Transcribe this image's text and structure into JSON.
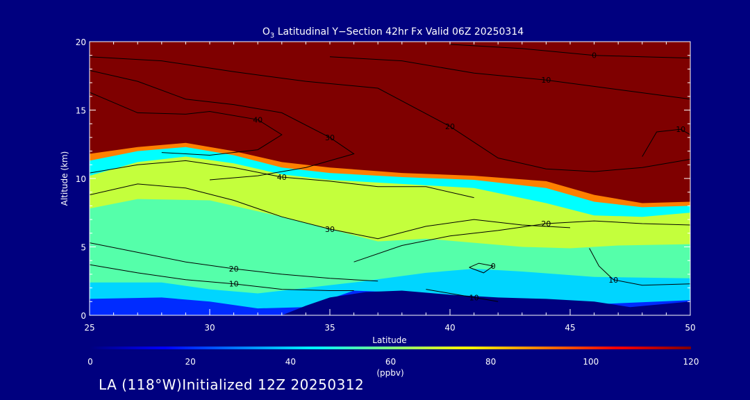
{
  "chart_data": {
    "type": "heatmap",
    "title_main": "O",
    "title_sub": "3",
    "title_rest": " Latitudinal Y−Section 42hr  Fx Valid 06Z 20250314",
    "xlabel": "Latitude",
    "ylabel": "Altitude (km)",
    "xlim": [
      25,
      50
    ],
    "ylim": [
      0,
      20
    ],
    "x_ticks": [
      "25",
      "30",
      "35",
      "40",
      "45",
      "50"
    ],
    "y_ticks": [
      "0",
      "5",
      "10",
      "15",
      "20"
    ],
    "colorbar": {
      "label": "(ppbv)",
      "range": [
        0,
        120
      ],
      "ticks": [
        "0",
        "20",
        "40",
        "60",
        "80",
        "100",
        "120"
      ],
      "colors": [
        "#00007f",
        "#0000ff",
        "#0080ff",
        "#00ffff",
        "#80ff80",
        "#ffff00",
        "#ff8000",
        "#ff0000",
        "#7f0000"
      ]
    },
    "field_layers": [
      {
        "value": 45,
        "points": [
          [
            25,
            20
          ],
          [
            50,
            20
          ],
          [
            50,
            0
          ],
          [
            25,
            0
          ]
        ]
      },
      {
        "value": 68,
        "points": [
          [
            25,
            10.2
          ],
          [
            27,
            11.2
          ],
          [
            29,
            11.6
          ],
          [
            31,
            11.1
          ],
          [
            33,
            10.3
          ],
          [
            35,
            9.9
          ],
          [
            38,
            9.6
          ],
          [
            41,
            9.3
          ],
          [
            44,
            8.2
          ],
          [
            46,
            7.3
          ],
          [
            48,
            7.2
          ],
          [
            50,
            7.5
          ],
          [
            50,
            0
          ],
          [
            25,
            0
          ]
        ]
      },
      {
        "value": 55,
        "points": [
          [
            25,
            7.8
          ],
          [
            27,
            8.5
          ],
          [
            30,
            8.4
          ],
          [
            33,
            7.2
          ],
          [
            35,
            6.3
          ],
          [
            37,
            5.4
          ],
          [
            39,
            5.6
          ],
          [
            41,
            5.3
          ],
          [
            43,
            5.0
          ],
          [
            45,
            4.9
          ],
          [
            47,
            5.1
          ],
          [
            50,
            5.2
          ],
          [
            50,
            0
          ],
          [
            25,
            0
          ]
        ]
      },
      {
        "value": 40,
        "points": [
          [
            25,
            2.4
          ],
          [
            28,
            2.4
          ],
          [
            30,
            1.9
          ],
          [
            32,
            1.6
          ],
          [
            34,
            2.0
          ],
          [
            36,
            2.4
          ],
          [
            39,
            3.1
          ],
          [
            41,
            3.4
          ],
          [
            43,
            3.2
          ],
          [
            46,
            2.8
          ],
          [
            50,
            2.7
          ],
          [
            50,
            0
          ],
          [
            25,
            0
          ]
        ]
      },
      {
        "value": 20,
        "points": [
          [
            25,
            1.2
          ],
          [
            28,
            1.3
          ],
          [
            30,
            1.0
          ],
          [
            32,
            0.5
          ],
          [
            34,
            0.6
          ],
          [
            36,
            1.8
          ],
          [
            39,
            1.6
          ],
          [
            42,
            1.2
          ],
          [
            46,
            0.8
          ],
          [
            50,
            1.1
          ],
          [
            50,
            0
          ],
          [
            25,
            0
          ]
        ]
      },
      {
        "value": 90,
        "points": [
          [
            25,
            11.3
          ],
          [
            27,
            12.0
          ],
          [
            29,
            12.3
          ],
          [
            31,
            11.7
          ],
          [
            33,
            10.8
          ],
          [
            35,
            10.4
          ],
          [
            38,
            10.1
          ],
          [
            41,
            9.9
          ],
          [
            44,
            9.3
          ],
          [
            46,
            8.3
          ],
          [
            48,
            7.9
          ],
          [
            50,
            8.0
          ],
          [
            50,
            20
          ],
          [
            25,
            20
          ]
        ]
      },
      {
        "value": 120,
        "points": [
          [
            25,
            11.8
          ],
          [
            27,
            12.3
          ],
          [
            29,
            12.6
          ],
          [
            31,
            12.0
          ],
          [
            33,
            11.2
          ],
          [
            35,
            10.8
          ],
          [
            38,
            10.4
          ],
          [
            41,
            10.2
          ],
          [
            44,
            9.8
          ],
          [
            46,
            8.8
          ],
          [
            48,
            8.2
          ],
          [
            50,
            8.3
          ],
          [
            50,
            20
          ],
          [
            25,
            20
          ]
        ]
      },
      {
        "value": 0,
        "points": [
          [
            33,
            0
          ],
          [
            34,
            0.7
          ],
          [
            35,
            1.3
          ],
          [
            36.5,
            1.7
          ],
          [
            38,
            1.8
          ],
          [
            40,
            1.5
          ],
          [
            42,
            1.3
          ],
          [
            44,
            1.2
          ],
          [
            46,
            1.0
          ],
          [
            47.5,
            0.6
          ],
          [
            50,
            1.0
          ],
          [
            50,
            0
          ]
        ]
      }
    ],
    "contours": [
      {
        "label": "10",
        "points": [
          [
            25,
            3.7
          ],
          [
            27,
            3.1
          ],
          [
            29,
            2.6
          ],
          [
            31,
            2.3
          ],
          [
            33,
            1.9
          ],
          [
            35,
            1.8
          ],
          [
            36,
            1.8
          ]
        ]
      },
      {
        "label": "20",
        "points": [
          [
            25,
            5.3
          ],
          [
            27,
            4.6
          ],
          [
            29,
            3.9
          ],
          [
            31,
            3.4
          ],
          [
            33,
            3.0
          ],
          [
            35,
            2.7
          ],
          [
            37,
            2.5
          ]
        ]
      },
      {
        "label": "30",
        "points": [
          [
            25,
            8.8
          ],
          [
            27,
            9.6
          ],
          [
            29,
            9.3
          ],
          [
            31,
            8.4
          ],
          [
            33,
            7.2
          ],
          [
            35,
            6.3
          ],
          [
            37,
            5.6
          ],
          [
            39,
            6.5
          ],
          [
            41,
            7.0
          ],
          [
            43,
            6.6
          ],
          [
            45,
            6.4
          ]
        ]
      },
      {
        "label": "40",
        "points": [
          [
            25,
            10.4
          ],
          [
            27,
            11.0
          ],
          [
            29,
            11.3
          ],
          [
            31,
            10.8
          ],
          [
            33,
            10.1
          ],
          [
            35,
            9.8
          ],
          [
            37,
            9.4
          ],
          [
            39,
            9.4
          ],
          [
            41,
            8.6
          ]
        ]
      },
      {
        "label": "20",
        "points": [
          [
            36,
            3.9
          ],
          [
            38,
            5.1
          ],
          [
            40,
            5.8
          ],
          [
            42,
            6.2
          ],
          [
            44,
            6.7
          ],
          [
            46,
            6.9
          ],
          [
            48,
            6.7
          ],
          [
            50,
            6.6
          ]
        ]
      },
      {
        "label": "20",
        "points": [
          [
            25,
            18.9
          ],
          [
            28,
            18.6
          ],
          [
            31,
            17.8
          ],
          [
            34,
            17.1
          ],
          [
            37,
            16.6
          ],
          [
            40,
            13.8
          ],
          [
            42,
            11.5
          ],
          [
            44,
            10.7
          ],
          [
            46,
            10.5
          ],
          [
            48,
            10.8
          ],
          [
            50,
            11.4
          ]
        ]
      },
      {
        "label": "10",
        "points": [
          [
            35,
            18.9
          ],
          [
            38,
            18.6
          ],
          [
            41,
            17.7
          ],
          [
            44,
            17.2
          ],
          [
            47,
            16.5
          ],
          [
            50,
            15.8
          ]
        ]
      },
      {
        "label": "0",
        "points": [
          [
            40,
            19.8
          ],
          [
            43,
            19.5
          ],
          [
            46,
            19.0
          ],
          [
            48,
            18.9
          ],
          [
            50,
            18.8
          ]
        ]
      },
      {
        "label": "30",
        "points": [
          [
            25,
            17.9
          ],
          [
            27,
            17.1
          ],
          [
            29,
            15.8
          ],
          [
            31,
            15.4
          ],
          [
            33,
            14.8
          ],
          [
            35,
            13.0
          ],
          [
            36,
            11.8
          ],
          [
            34,
            10.8
          ],
          [
            32,
            10.2
          ],
          [
            30,
            9.9
          ]
        ]
      },
      {
        "label": "40",
        "points": [
          [
            25,
            16.3
          ],
          [
            27,
            14.8
          ],
          [
            29,
            14.7
          ],
          [
            30,
            14.9
          ],
          [
            32,
            14.3
          ],
          [
            33,
            13.2
          ],
          [
            32,
            12.1
          ],
          [
            30,
            11.7
          ],
          [
            28,
            11.9
          ]
        ]
      },
      {
        "label": "10",
        "points": [
          [
            48,
            11.6
          ],
          [
            48.6,
            13.4
          ],
          [
            49.6,
            13.6
          ],
          [
            50,
            13.2
          ]
        ]
      },
      {
        "label": "10",
        "points": [
          [
            45.8,
            4.9
          ],
          [
            46.2,
            3.6
          ],
          [
            46.8,
            2.6
          ],
          [
            48,
            2.2
          ],
          [
            50,
            2.3
          ]
        ]
      },
      {
        "label": "10",
        "points": [
          [
            39,
            1.9
          ],
          [
            40,
            1.6
          ],
          [
            41,
            1.3
          ],
          [
            42,
            1.0
          ]
        ]
      },
      {
        "label": "0",
        "points": [
          [
            40.8,
            3.5
          ],
          [
            41.2,
            3.8
          ],
          [
            41.8,
            3.6
          ],
          [
            41.4,
            3.1
          ],
          [
            40.8,
            3.5
          ]
        ]
      }
    ]
  },
  "footer_text": "LA (118°W)Initialized 12Z 20250312"
}
